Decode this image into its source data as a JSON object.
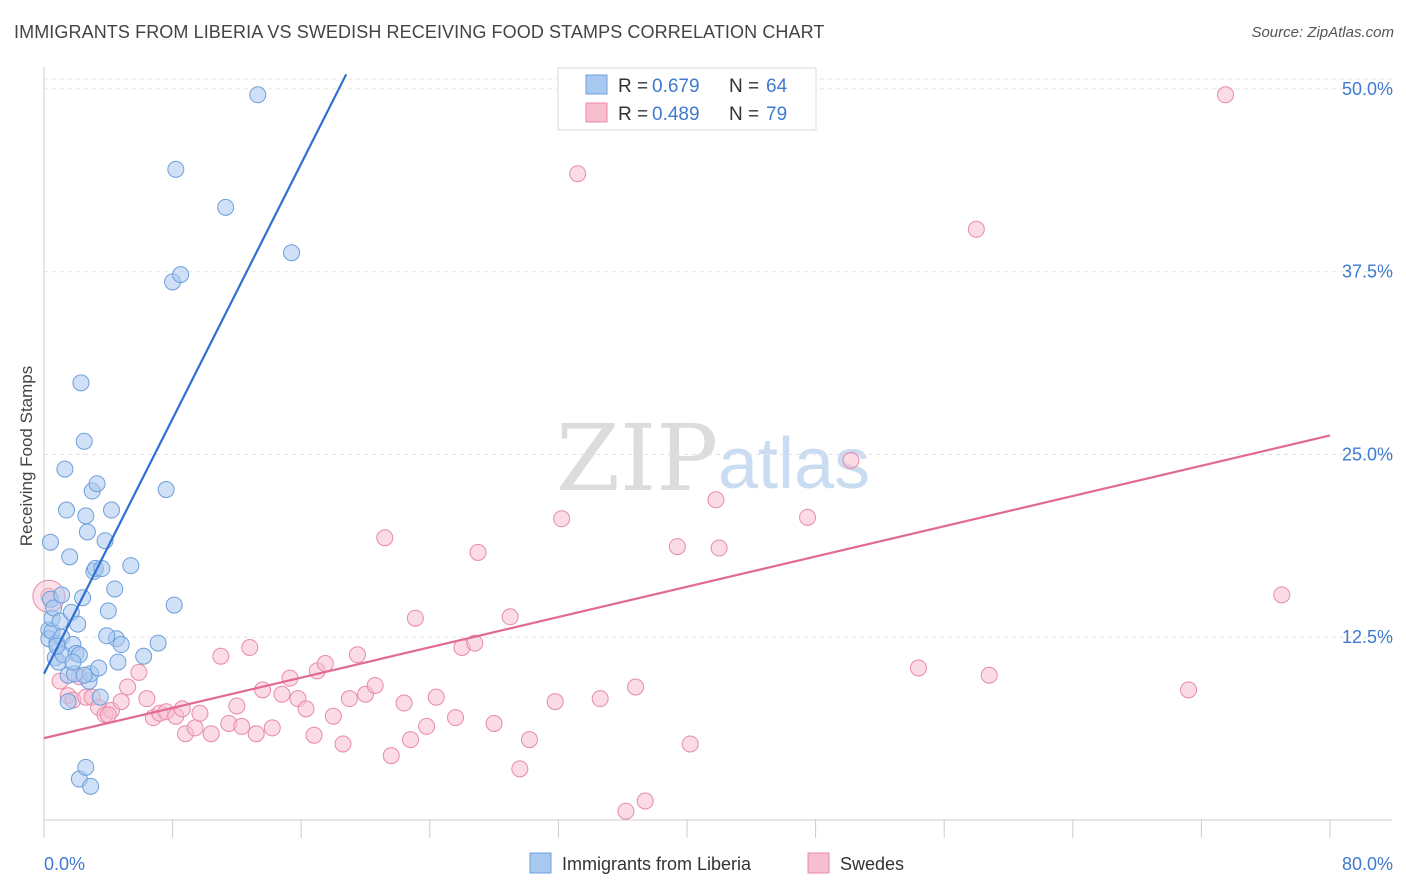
{
  "title": "IMMIGRANTS FROM LIBERIA VS SWEDISH RECEIVING FOOD STAMPS CORRELATION CHART",
  "source": "Source: ZipAtlas.com",
  "watermark": {
    "zip": "ZIP",
    "atlas": "atlas"
  },
  "colors": {
    "blue_fill": "#a9c8f0",
    "blue_stroke": "#6d9fdc",
    "blue_line": "#2f6fcf",
    "pink_fill": "#f7bed0",
    "pink_stroke": "#e88aa9",
    "pink_line": "#e06a94",
    "value_text": "#3f7ad0"
  },
  "legend_top": {
    "rows": [
      {
        "r_label": "R = ",
        "r_value": "0.679",
        "n_label": "N = ",
        "n_value": "64"
      },
      {
        "r_label": "R = ",
        "r_value": "0.489",
        "n_label": "N = ",
        "n_value": "79"
      }
    ]
  },
  "chart_data": {
    "type": "scatter",
    "title": "IMMIGRANTS FROM LIBERIA VS SWEDISH RECEIVING FOOD STAMPS CORRELATION CHART",
    "ylabel": "Receiving Food Stamps",
    "xlabel": "",
    "xlim": [
      0,
      80
    ],
    "ylim": [
      0,
      51.5
    ],
    "x_tick_labels": [
      {
        "value": 0,
        "label": "0.0%"
      },
      {
        "value": 80,
        "label": "80.0%"
      }
    ],
    "y_tick_labels": [
      {
        "value": 12.5,
        "label": "12.5%"
      },
      {
        "value": 25.0,
        "label": "25.0%"
      },
      {
        "value": 37.5,
        "label": "37.5%"
      },
      {
        "value": 50.0,
        "label": "50.0%"
      }
    ],
    "grid": true,
    "legend_position": "bottom",
    "series": [
      {
        "name": "Immigrants from Liberia",
        "r": 0.679,
        "n": 64,
        "trendline": [
          [
            0,
            10.0
          ],
          [
            18.8,
            51.0
          ]
        ],
        "points": [
          [
            0.3,
            13.0
          ],
          [
            0.3,
            12.4
          ],
          [
            0.4,
            15.1
          ],
          [
            0.4,
            19.0
          ],
          [
            0.5,
            12.9
          ],
          [
            0.5,
            13.8
          ],
          [
            0.6,
            14.5
          ],
          [
            0.7,
            11.1
          ],
          [
            0.8,
            12.1
          ],
          [
            0.9,
            10.8
          ],
          [
            1.0,
            13.6
          ],
          [
            1.1,
            12.5
          ],
          [
            1.2,
            11.3
          ],
          [
            1.3,
            24.0
          ],
          [
            1.4,
            21.2
          ],
          [
            1.5,
            9.9
          ],
          [
            1.5,
            8.1
          ],
          [
            1.6,
            18.0
          ],
          [
            1.7,
            14.2
          ],
          [
            1.8,
            12.0
          ],
          [
            1.9,
            10.0
          ],
          [
            2.0,
            11.4
          ],
          [
            2.1,
            13.4
          ],
          [
            2.2,
            11.3
          ],
          [
            2.3,
            29.9
          ],
          [
            2.4,
            15.2
          ],
          [
            2.5,
            25.9
          ],
          [
            2.6,
            20.8
          ],
          [
            2.7,
            19.7
          ],
          [
            2.8,
            9.5
          ],
          [
            2.9,
            10.0
          ],
          [
            3.0,
            22.5
          ],
          [
            3.1,
            17.0
          ],
          [
            3.2,
            17.2
          ],
          [
            3.3,
            23.0
          ],
          [
            3.4,
            10.4
          ],
          [
            3.5,
            8.4
          ],
          [
            3.6,
            17.2
          ],
          [
            3.8,
            19.1
          ],
          [
            4.0,
            14.3
          ],
          [
            4.2,
            21.2
          ],
          [
            4.4,
            15.8
          ],
          [
            4.5,
            12.4
          ],
          [
            4.6,
            10.8
          ],
          [
            4.8,
            12.0
          ],
          [
            5.4,
            17.4
          ],
          [
            6.2,
            11.2
          ],
          [
            7.1,
            12.1
          ],
          [
            7.6,
            22.6
          ],
          [
            8.0,
            36.8
          ],
          [
            8.1,
            14.7
          ],
          [
            8.2,
            44.5
          ],
          [
            8.5,
            37.3
          ],
          [
            11.3,
            41.9
          ],
          [
            13.3,
            49.6
          ],
          [
            15.4,
            38.8
          ],
          [
            2.2,
            2.8
          ],
          [
            2.6,
            3.6
          ],
          [
            2.9,
            2.3
          ],
          [
            1.1,
            15.4
          ],
          [
            0.8,
            11.9
          ],
          [
            2.5,
            9.9
          ],
          [
            3.9,
            12.6
          ],
          [
            1.8,
            10.8
          ]
        ]
      },
      {
        "name": "Swedes",
        "r": 0.489,
        "n": 79,
        "trendline": [
          [
            0,
            5.6
          ],
          [
            80,
            26.3
          ]
        ],
        "points": [
          [
            0.3,
            15.3
          ],
          [
            1.0,
            9.5
          ],
          [
            1.5,
            8.5
          ],
          [
            1.8,
            8.2
          ],
          [
            2.2,
            9.8
          ],
          [
            2.6,
            8.4
          ],
          [
            3.0,
            8.4
          ],
          [
            3.4,
            7.7
          ],
          [
            3.8,
            7.2
          ],
          [
            4.2,
            7.5
          ],
          [
            4.8,
            8.1
          ],
          [
            5.2,
            9.1
          ],
          [
            5.9,
            10.1
          ],
          [
            6.4,
            8.3
          ],
          [
            6.8,
            7.0
          ],
          [
            7.2,
            7.3
          ],
          [
            7.6,
            7.4
          ],
          [
            8.2,
            7.1
          ],
          [
            8.6,
            7.6
          ],
          [
            8.8,
            5.9
          ],
          [
            9.4,
            6.3
          ],
          [
            9.7,
            7.3
          ],
          [
            10.4,
            5.9
          ],
          [
            11.0,
            11.2
          ],
          [
            11.5,
            6.6
          ],
          [
            12.0,
            7.8
          ],
          [
            12.8,
            11.8
          ],
          [
            13.2,
            5.9
          ],
          [
            13.6,
            8.9
          ],
          [
            14.2,
            6.3
          ],
          [
            14.8,
            8.6
          ],
          [
            15.3,
            9.7
          ],
          [
            15.8,
            8.3
          ],
          [
            16.3,
            7.6
          ],
          [
            17.0,
            10.2
          ],
          [
            17.5,
            10.7
          ],
          [
            18.0,
            7.1
          ],
          [
            18.6,
            5.2
          ],
          [
            19.0,
            8.3
          ],
          [
            19.5,
            11.3
          ],
          [
            20.0,
            8.6
          ],
          [
            20.6,
            9.2
          ],
          [
            21.2,
            19.3
          ],
          [
            21.6,
            4.4
          ],
          [
            22.4,
            8.0
          ],
          [
            22.8,
            5.5
          ],
          [
            23.1,
            13.8
          ],
          [
            23.8,
            6.4
          ],
          [
            24.4,
            8.4
          ],
          [
            25.6,
            7.0
          ],
          [
            26.0,
            11.8
          ],
          [
            26.8,
            12.1
          ],
          [
            27.0,
            18.3
          ],
          [
            28.0,
            6.6
          ],
          [
            29.0,
            13.9
          ],
          [
            29.6,
            3.5
          ],
          [
            30.2,
            5.5
          ],
          [
            31.8,
            8.1
          ],
          [
            32.2,
            20.6
          ],
          [
            33.2,
            44.2
          ],
          [
            34.6,
            8.3
          ],
          [
            36.2,
            0.6
          ],
          [
            36.8,
            9.1
          ],
          [
            37.4,
            1.3
          ],
          [
            39.4,
            18.7
          ],
          [
            40.2,
            5.2
          ],
          [
            41.8,
            21.9
          ],
          [
            42.0,
            18.6
          ],
          [
            47.5,
            20.7
          ],
          [
            50.2,
            24.6
          ],
          [
            54.4,
            10.4
          ],
          [
            58.0,
            40.4
          ],
          [
            58.8,
            9.9
          ],
          [
            71.2,
            8.9
          ],
          [
            73.5,
            49.6
          ],
          [
            77.0,
            15.4
          ],
          [
            16.8,
            5.8
          ],
          [
            12.3,
            6.4
          ],
          [
            4.0,
            7.2
          ]
        ]
      }
    ]
  }
}
